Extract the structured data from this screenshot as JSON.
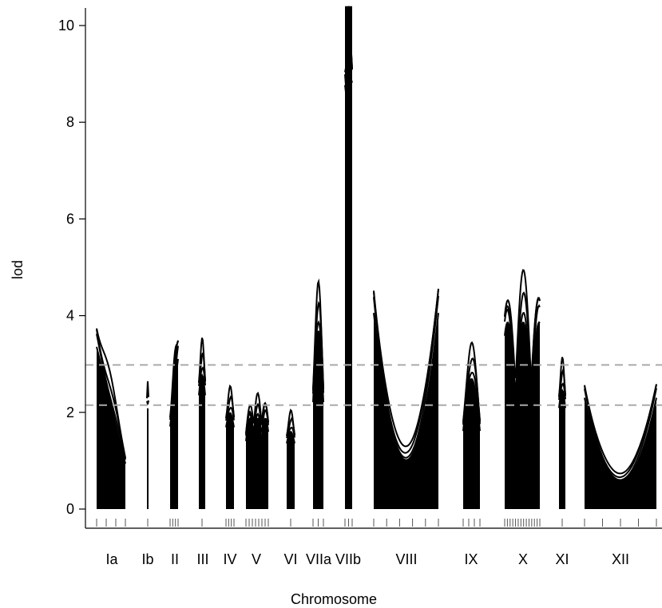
{
  "chart_data": {
    "type": "line",
    "title": "",
    "xlabel": "Chromosome",
    "ylabel": "lod",
    "ylim": [
      0,
      10.4
    ],
    "yticks": [
      0,
      2,
      4,
      6,
      8,
      10
    ],
    "grid": false,
    "legend": "none",
    "thresholds": [
      {
        "value": 2.98,
        "style": "dashed",
        "color": "#aaaaaa"
      },
      {
        "value": 2.15,
        "style": "dashed",
        "color": "#aaaaaa"
      }
    ],
    "chromosomes": [
      {
        "name": "Ia",
        "peak": 4.3,
        "markers": 4
      },
      {
        "name": "Ib",
        "peak": 2.65,
        "markers": 1
      },
      {
        "name": "II",
        "peak": 3.98,
        "markers": 4
      },
      {
        "name": "III",
        "peak": 3.55,
        "markers": 1
      },
      {
        "name": "IV",
        "peak": 2.55,
        "markers": 4
      },
      {
        "name": "V",
        "peak": 2.4,
        "markers": 8
      },
      {
        "name": "VI",
        "peak": 2.05,
        "markers": 1
      },
      {
        "name": "VIIa",
        "peak": 4.72,
        "markers": 3
      },
      {
        "name": "VIIb",
        "peak": 10.4,
        "markers": 3
      },
      {
        "name": "VIII",
        "peak": 5.2,
        "markers": 6
      },
      {
        "name": "IX",
        "peak": 3.45,
        "markers": 4
      },
      {
        "name": "X",
        "peak": 4.95,
        "markers": 14
      },
      {
        "name": "XI",
        "peak": 3.15,
        "markers": 1
      },
      {
        "name": "XII",
        "peak": 2.95,
        "markers": 5
      }
    ],
    "colors": {
      "lines": "#000000",
      "threshold": "#aaaaaa",
      "axis": "#000000"
    }
  }
}
